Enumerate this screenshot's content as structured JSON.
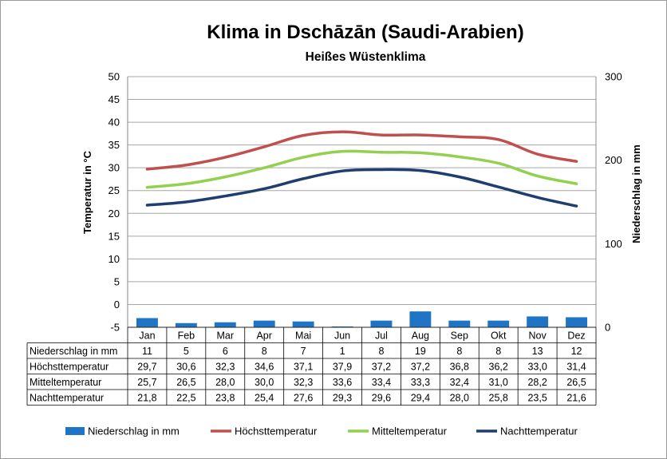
{
  "chart_data": {
    "type": "line",
    "title": "Klima in Dschāzān (Saudi-Arabien)",
    "subtitle": "Heißes Wüstenklima",
    "ylabel": "Temperatur in °C",
    "ylabel_right": "Niederschlag in mm",
    "ylim": [
      -5,
      50
    ],
    "yticks": [
      "50",
      "45",
      "40",
      "35",
      "30",
      "25",
      "20",
      "15",
      "10",
      "5",
      "0",
      "-5"
    ],
    "ylim_right": [
      0,
      300
    ],
    "yticks_right": [
      "300",
      "200",
      "100",
      "0"
    ],
    "grid": true,
    "legend_position": "bottom",
    "categories": [
      "Jan",
      "Feb",
      "Mar",
      "Apr",
      "Mai",
      "Jun",
      "Jul",
      "Aug",
      "Sep",
      "Okt",
      "Nov",
      "Dez"
    ],
    "series": [
      {
        "name": "Niederschlag in mm",
        "kind": "bar",
        "axis": "right",
        "color": "#1f74c6",
        "values": [
          11,
          5,
          6,
          8,
          7,
          1,
          8,
          19,
          8,
          8,
          13,
          12
        ],
        "labels": [
          "11",
          "5",
          "6",
          "8",
          "7",
          "1",
          "8",
          "19",
          "8",
          "8",
          "13",
          "12"
        ]
      },
      {
        "name": "Höchsttemperatur",
        "kind": "line",
        "axis": "left",
        "color": "#c0504d",
        "values": [
          29.7,
          30.6,
          32.3,
          34.6,
          37.1,
          37.9,
          37.2,
          37.2,
          36.8,
          36.2,
          33.0,
          31.4
        ],
        "labels": [
          "29,7",
          "30,6",
          "32,3",
          "34,6",
          "37,1",
          "37,9",
          "37,2",
          "37,2",
          "36,8",
          "36,2",
          "33,0",
          "31,4"
        ]
      },
      {
        "name": "Mitteltemperatur",
        "kind": "line",
        "axis": "left",
        "color": "#92d050",
        "values": [
          25.7,
          26.5,
          28.0,
          30.0,
          32.3,
          33.6,
          33.4,
          33.3,
          32.4,
          31.0,
          28.2,
          26.5
        ],
        "labels": [
          "25,7",
          "26,5",
          "28,0",
          "30,0",
          "32,3",
          "33,6",
          "33,4",
          "33,3",
          "32,4",
          "31,0",
          "28,2",
          "26,5"
        ]
      },
      {
        "name": "Nachttemperatur",
        "kind": "line",
        "axis": "left",
        "color": "#1f3d6e",
        "values": [
          21.8,
          22.5,
          23.8,
          25.4,
          27.6,
          29.3,
          29.6,
          29.4,
          28.0,
          25.8,
          23.5,
          21.6
        ],
        "labels": [
          "21,8",
          "22,5",
          "23,8",
          "25,4",
          "27,6",
          "29,3",
          "29,6",
          "29,4",
          "28,0",
          "25,8",
          "23,5",
          "21,6"
        ]
      }
    ]
  }
}
